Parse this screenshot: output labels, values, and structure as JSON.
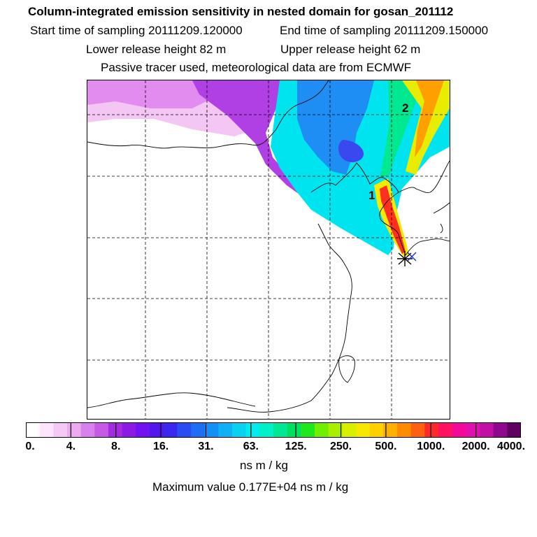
{
  "title": "Column-integrated emission sensitivity in nested domain for gosan_201112",
  "start_time": "Start time of sampling 20111209.120000",
  "end_time": "End time of sampling 20111209.150000",
  "lower_release": "Lower release height   82 m",
  "upper_release": "Upper release height   62 m",
  "tracer_note": "Passive tracer used, meteorological data are from ECMWF",
  "map": {
    "labels": [
      "1",
      "2"
    ]
  },
  "colorbar": {
    "ticks": [
      "0.",
      "4.",
      "8.",
      "16.",
      "31.",
      "63.",
      "125.",
      "250.",
      "500.",
      "1000.",
      "2000.",
      "4000."
    ],
    "colors": [
      "#ffffff",
      "#fde6fd",
      "#f6c8f6",
      "#eeaaf0",
      "#d780ee",
      "#c65ae6",
      "#a52be0",
      "#8c1ae4",
      "#7312f0",
      "#5316ee",
      "#3a28f0",
      "#2a4cf2",
      "#1e6ef4",
      "#1290f6",
      "#10b0f6",
      "#0ad0f2",
      "#00ecee",
      "#00f0c8",
      "#00e894",
      "#00e060",
      "#20e81e",
      "#70f000",
      "#a8f000",
      "#d8f000",
      "#f8e800",
      "#ffd000",
      "#ffb000",
      "#ff8c00",
      "#ff6010",
      "#ff2828",
      "#ff1060",
      "#f4089a",
      "#e010b0",
      "#c010a8",
      "#900890",
      "#600060"
    ],
    "unit": "ns m / kg",
    "maximum": "Maximum value  0.177E+04 ns m / kg"
  }
}
